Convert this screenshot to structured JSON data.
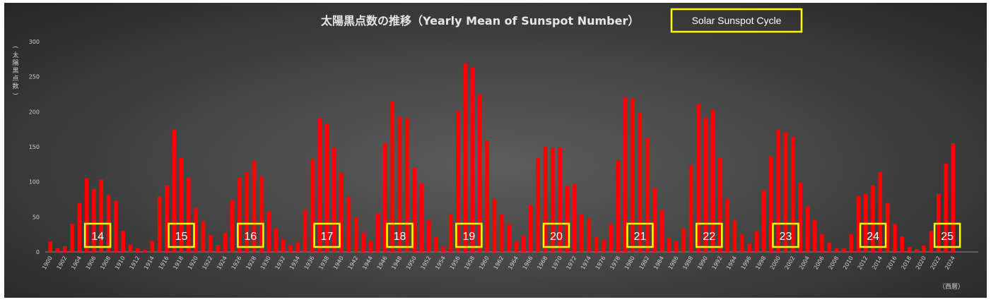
{
  "chart_data": {
    "type": "bar",
    "title": "太陽黒点数の推移（Yearly Mean of Sunspot Number）",
    "legend": "Solar Sunspot Cycle",
    "ylabel": "(太陽黒点数)",
    "xlabel": "（西暦）",
    "ylim": [
      0,
      300
    ],
    "yticks": [
      0,
      50,
      100,
      150,
      200,
      250,
      300
    ],
    "grid": false,
    "bar_color": "#ff0000",
    "cycle_box_color": "#ffff00",
    "years": [
      1900,
      1901,
      1902,
      1903,
      1904,
      1905,
      1906,
      1907,
      1908,
      1909,
      1910,
      1911,
      1912,
      1913,
      1914,
      1915,
      1916,
      1917,
      1918,
      1919,
      1920,
      1921,
      1922,
      1923,
      1924,
      1925,
      1926,
      1927,
      1928,
      1929,
      1930,
      1931,
      1932,
      1933,
      1934,
      1935,
      1936,
      1937,
      1938,
      1939,
      1940,
      1941,
      1942,
      1943,
      1944,
      1945,
      1946,
      1947,
      1948,
      1949,
      1950,
      1951,
      1952,
      1953,
      1954,
      1955,
      1956,
      1957,
      1958,
      1959,
      1960,
      1961,
      1962,
      1963,
      1964,
      1965,
      1966,
      1967,
      1968,
      1969,
      1970,
      1971,
      1972,
      1973,
      1974,
      1975,
      1976,
      1977,
      1978,
      1979,
      1980,
      1981,
      1982,
      1983,
      1984,
      1985,
      1986,
      1987,
      1988,
      1989,
      1990,
      1991,
      1992,
      1993,
      1994,
      1995,
      1996,
      1997,
      1998,
      1999,
      2000,
      2001,
      2002,
      2003,
      2004,
      2005,
      2006,
      2007,
      2008,
      2009,
      2010,
      2011,
      2012,
      2013,
      2014,
      2015,
      2016,
      2017,
      2018,
      2019,
      2020,
      2021,
      2022,
      2023,
      2024
    ],
    "values": [
      15,
      5,
      8,
      40,
      70,
      105,
      90,
      103,
      81,
      73,
      30,
      10,
      5,
      3,
      16,
      79,
      95,
      174,
      135,
      106,
      63,
      44,
      24,
      10,
      27,
      74,
      106,
      114,
      130,
      108,
      58,
      34,
      18,
      9,
      14,
      60,
      133,
      191,
      183,
      149,
      113,
      79,
      50,
      27,
      16,
      55,
      155,
      215,
      193,
      191,
      120,
      98,
      45,
      21,
      7,
      54,
      201,
      269,
      263,
      225,
      159,
      76,
      54,
      40,
      15,
      23,
      67,
      134,
      150,
      149,
      149,
      94,
      97,
      54,
      48,
      22,
      18,
      40,
      131,
      220,
      219,
      199,
      162,
      91,
      60,
      20,
      15,
      34,
      124,
      211,
      192,
      203,
      134,
      76,
      45,
      25,
      12,
      29,
      88,
      137,
      174,
      171,
      164,
      99,
      65,
      46,
      25,
      13,
      5,
      5,
      25,
      80,
      83,
      95,
      114,
      70,
      40,
      22,
      7,
      4,
      9,
      30,
      83,
      126,
      155
    ],
    "x_tick_labels": [
      "1900",
      "1902",
      "1904",
      "1906",
      "1908",
      "1910",
      "1912",
      "1914",
      "1916",
      "1918",
      "1920",
      "1922",
      "1924",
      "1926",
      "1928",
      "1930",
      "1932",
      "1934",
      "1936",
      "1938",
      "1940",
      "1942",
      "1944",
      "1946",
      "1948",
      "1950",
      "1952",
      "1954",
      "1956",
      "1958",
      "1960",
      "1962",
      "1964",
      "1966",
      "1968",
      "1970",
      "1972",
      "1974",
      "1976",
      "1978",
      "1980",
      "1982",
      "1984",
      "1986",
      "1988",
      "1990",
      "1992",
      "1994",
      "1996",
      "1998",
      "2000",
      "2002",
      "2004",
      "2006",
      "2008",
      "2010",
      "2012",
      "2014",
      "2016",
      "2018",
      "2020",
      "2022",
      "2024"
    ],
    "cycles": [
      {
        "label": "14",
        "year": 1906.5
      },
      {
        "label": "15",
        "year": 1918
      },
      {
        "label": "16",
        "year": 1927.5
      },
      {
        "label": "17",
        "year": 1938
      },
      {
        "label": "18",
        "year": 1948
      },
      {
        "label": "19",
        "year": 1957.5
      },
      {
        "label": "20",
        "year": 1969.5
      },
      {
        "label": "21",
        "year": 1981
      },
      {
        "label": "22",
        "year": 1990.5
      },
      {
        "label": "23",
        "year": 2001
      },
      {
        "label": "24",
        "year": 2013
      },
      {
        "label": "25",
        "year": 2023.2
      }
    ]
  }
}
